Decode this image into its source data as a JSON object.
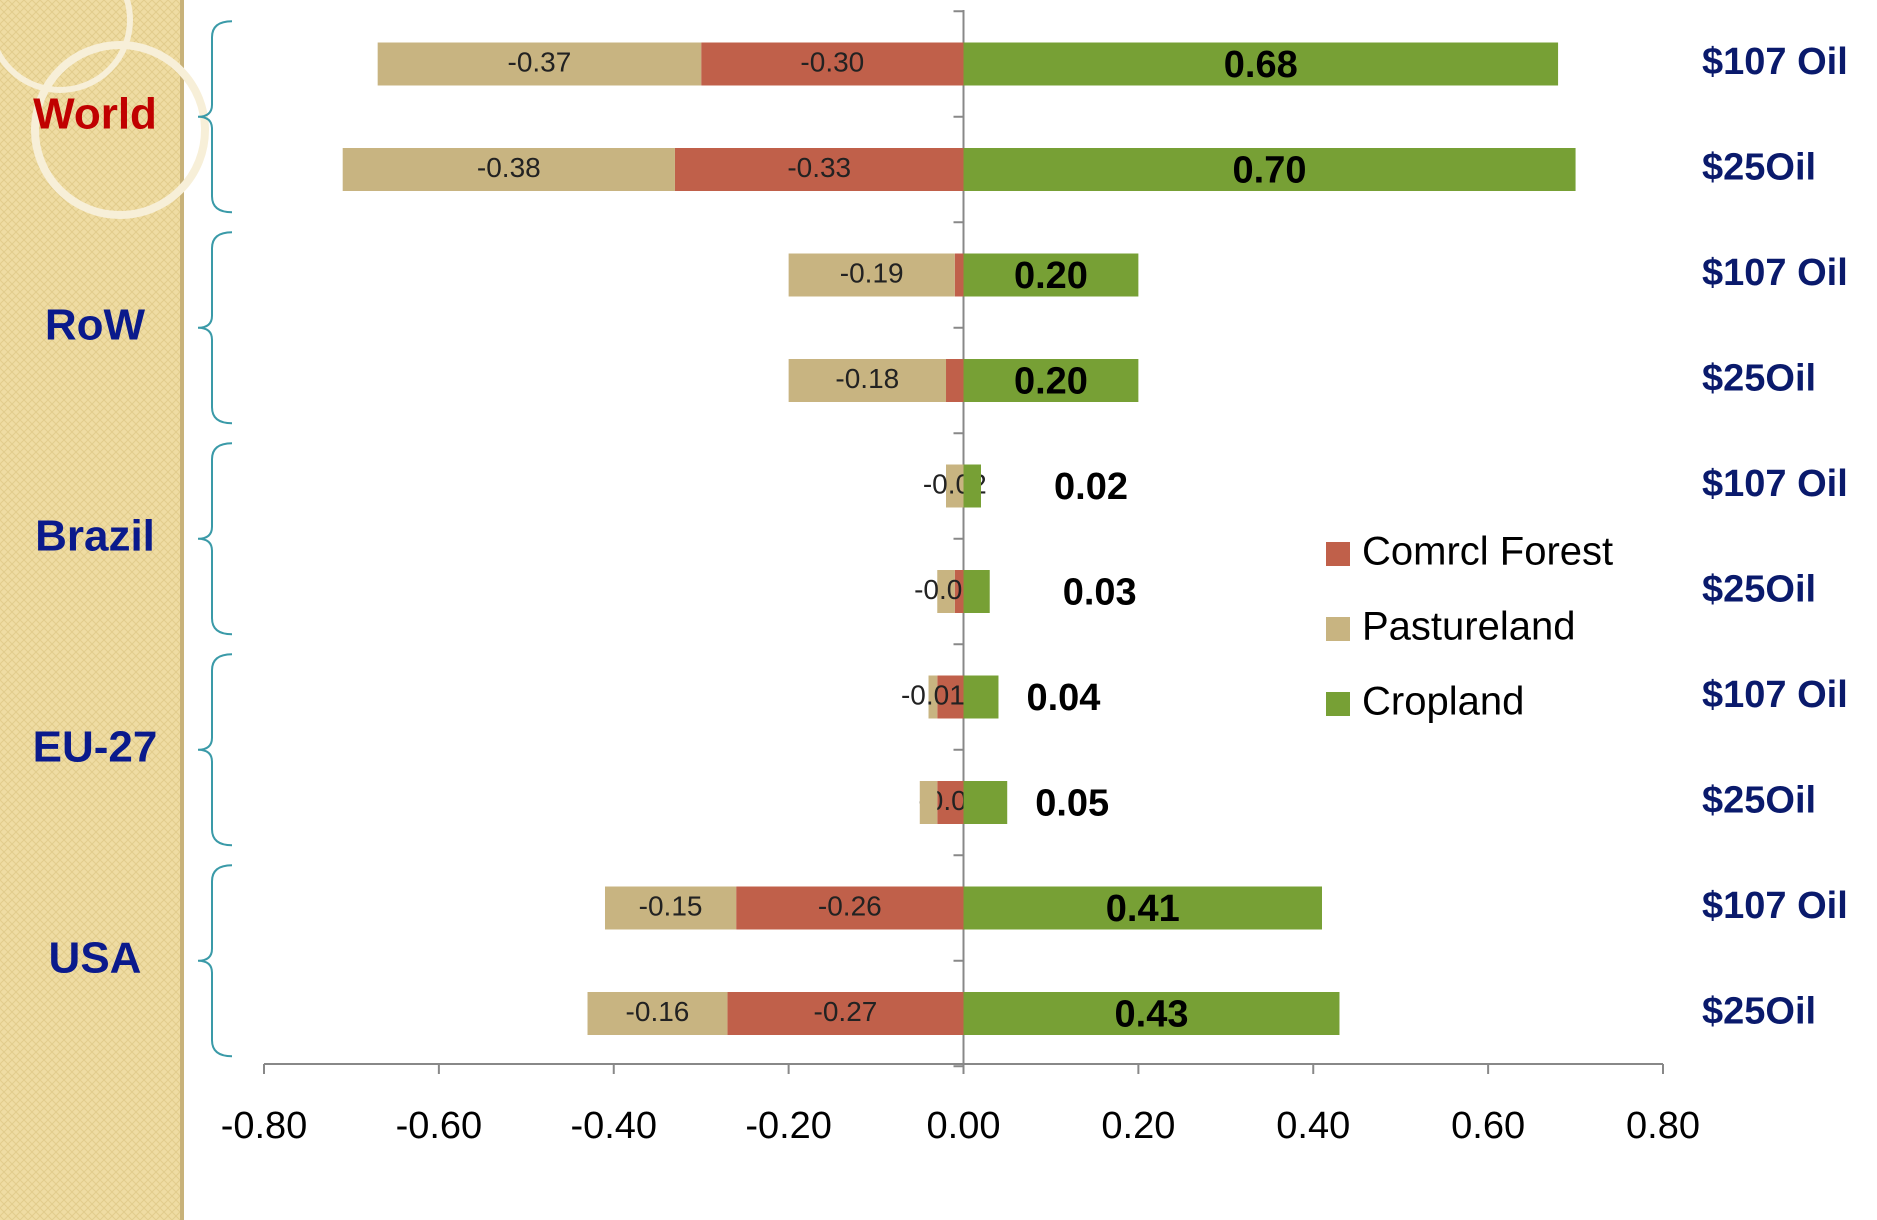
{
  "chart_data": {
    "type": "stacked-barh",
    "groups": [
      {
        "name": "World",
        "color": "#c00000"
      },
      {
        "name": "RoW",
        "color": "#0a1a8c"
      },
      {
        "name": "Brazil",
        "color": "#0a1a8c"
      },
      {
        "name": "EU-27",
        "color": "#0a1a8c"
      },
      {
        "name": "USA",
        "color": "#0a1a8c"
      }
    ],
    "categories": [
      "$107 Oil",
      "$25Oil",
      "$107 Oil",
      "$25Oil",
      "$107 Oil",
      "$25Oil",
      "$107 Oil",
      "$25Oil",
      "$107 Oil",
      "$25Oil"
    ],
    "series": [
      {
        "name": "Comrcl Forest",
        "color": "#c0604a",
        "values": [
          -0.3,
          -0.33,
          -0.01,
          -0.02,
          0,
          -0.01,
          -0.03,
          -0.03,
          -0.26,
          -0.27
        ],
        "value_labels": [
          "-0.30",
          "-0.33",
          null,
          null,
          null,
          null,
          null,
          "-0.03",
          "-0.26",
          "-0.27"
        ]
      },
      {
        "name": "Pastureland",
        "color": "#c8b481",
        "values": [
          -0.37,
          -0.38,
          -0.19,
          -0.18,
          -0.02,
          -0.02,
          -0.01,
          -0.02,
          -0.15,
          -0.16
        ],
        "value_labels": [
          "-0.37",
          "-0.38",
          "-0.19",
          "-0.18",
          "-0.02",
          "-0.02",
          "-0.01",
          null,
          "-0.15",
          "-0.16"
        ]
      },
      {
        "name": "Cropland",
        "color": "#77a035",
        "values": [
          0.68,
          0.7,
          0.2,
          0.2,
          0.02,
          0.03,
          0.04,
          0.05,
          0.41,
          0.43
        ],
        "value_labels": [
          "0.68",
          "0.70",
          "0.20",
          "0.20",
          "0.02",
          "0.03",
          "0.04",
          "0.05",
          "0.41",
          "0.43"
        ]
      }
    ],
    "xlim": [
      -0.8,
      0.8
    ],
    "xticks": [
      {
        "value": -0.8,
        "label": "-0.80"
      },
      {
        "value": -0.6,
        "label": "-0.60"
      },
      {
        "value": -0.4,
        "label": "-0.40"
      },
      {
        "value": -0.2,
        "label": "-0.20"
      },
      {
        "value": 0,
        "label": "0.00"
      },
      {
        "value": 0.2,
        "label": "0.20"
      },
      {
        "value": 0.4,
        "label": "0.40"
      },
      {
        "value": 0.6,
        "label": "0.60"
      },
      {
        "value": 0.8,
        "label": "0.80"
      }
    ],
    "legend": "center-right"
  }
}
